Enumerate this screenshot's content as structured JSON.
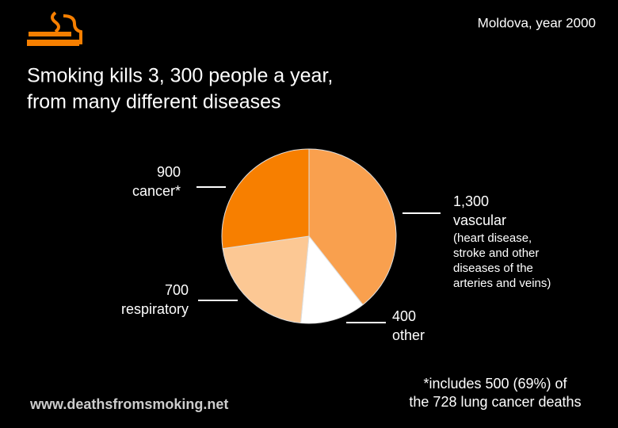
{
  "chart_data": {
    "type": "pie",
    "title": [
      "Smoking kills 3, 300 people a year,",
      "from many different diseases"
    ],
    "subtitle": "Moldova, year 2000",
    "categories": [
      "vascular",
      "other",
      "respiratory",
      "cancer*"
    ],
    "values": [
      1300,
      400,
      700,
      900
    ],
    "value_labels": [
      "1,300",
      "400",
      "700",
      "900"
    ],
    "colors": [
      "#f9a04e",
      "#ffffff",
      "#fcc894",
      "#f77f00"
    ],
    "annotation": [
      "(heart disease,",
      "stroke and other",
      "diseases of the",
      "arteries and veins)"
    ],
    "footnote": [
      "*includes 500 (69%) of",
      "the 728 lung cancer deaths"
    ],
    "source": "www.deathsfromsmoking.net"
  }
}
